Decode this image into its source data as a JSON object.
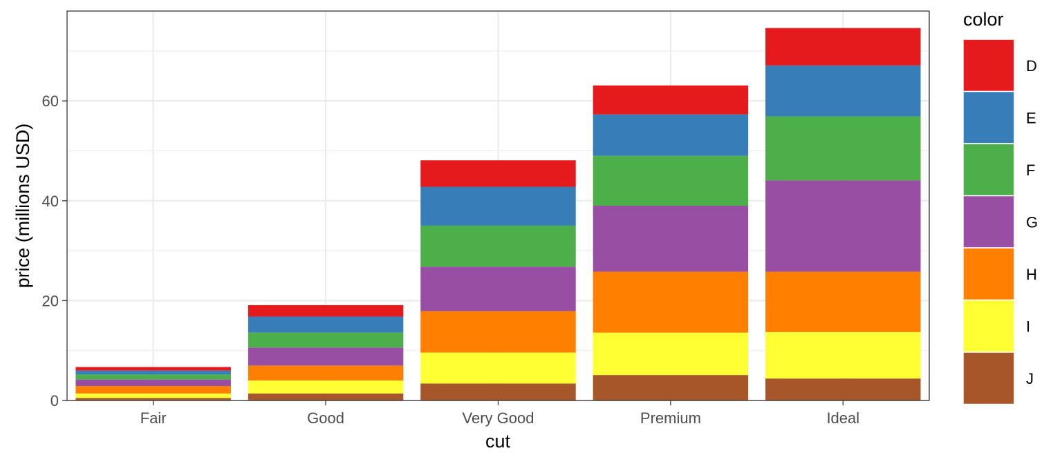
{
  "chart_data": {
    "type": "bar",
    "stacked": true,
    "title": "",
    "xlabel": "cut",
    "ylabel": "price (millions USD)",
    "ylim": [
      0,
      78
    ],
    "yticks": [
      0,
      20,
      40,
      60
    ],
    "grid": true,
    "legend_title": "color",
    "legend_position": "right",
    "categories": [
      "Fair",
      "Good",
      "Very Good",
      "Premium",
      "Ideal"
    ],
    "series": [
      {
        "name": "D",
        "color": "#E41A1C",
        "values": [
          0.7,
          2.3,
          5.3,
          5.8,
          7.5
        ]
      },
      {
        "name": "E",
        "color": "#377EB8",
        "values": [
          0.8,
          3.2,
          7.8,
          8.3,
          10.2
        ]
      },
      {
        "name": "F",
        "color": "#4DAF4A",
        "values": [
          1.0,
          3.0,
          8.2,
          10.0,
          12.8
        ]
      },
      {
        "name": "G",
        "color": "#984EA3",
        "values": [
          1.3,
          3.6,
          8.9,
          13.2,
          18.3
        ]
      },
      {
        "name": "H",
        "color": "#FF7F00",
        "values": [
          1.5,
          3.0,
          8.3,
          12.2,
          12.1
        ]
      },
      {
        "name": "I",
        "color": "#FFFF33",
        "values": [
          0.9,
          2.6,
          6.2,
          8.5,
          9.3
        ]
      },
      {
        "name": "J",
        "color": "#A65628",
        "values": [
          0.5,
          1.4,
          3.4,
          5.1,
          4.4
        ]
      }
    ]
  }
}
